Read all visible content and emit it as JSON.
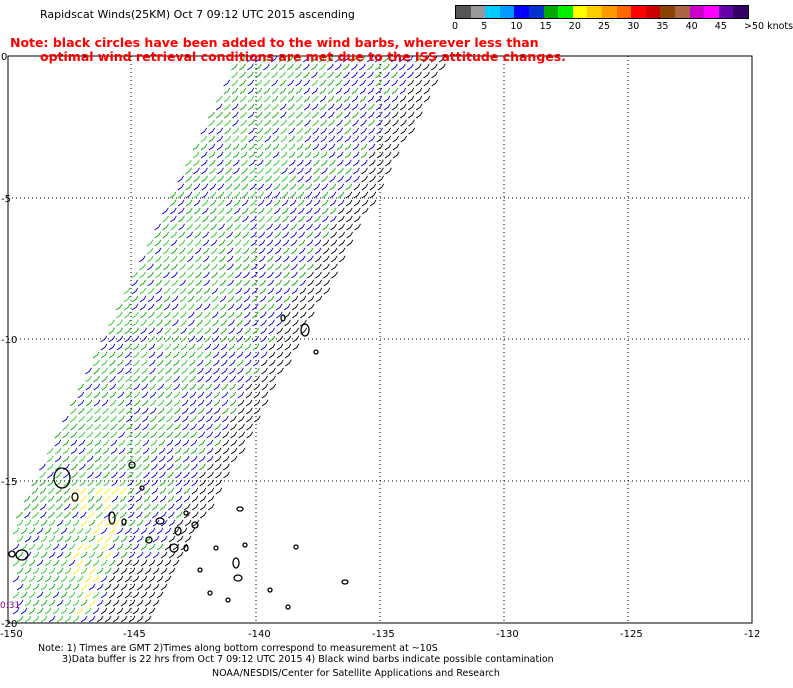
{
  "title": "Rapidscat Winds(25KM) Oct  7 09:12 UTC 2015 ascending",
  "note": {
    "line1": "Note: black circles have been added to the wind barbs, wherever less than",
    "line2": "optimal wind retrieval conditions are met due to the ISS attitude changes."
  },
  "color_scale": {
    "colors": [
      "#555555",
      "#999999",
      "#00ccff",
      "#0099ff",
      "#0000ff",
      "#0033cc",
      "#00aa00",
      "#00ee00",
      "#ffff00",
      "#ffcc00",
      "#ff9900",
      "#ff6600",
      "#ff0000",
      "#cc0000",
      "#884400",
      "#aa6644",
      "#cc00cc",
      "#ff00ff",
      "#6600aa",
      "#330066"
    ],
    "labels": [
      "0",
      "5",
      "10",
      "15",
      "20",
      "25",
      "30",
      "35",
      "40",
      "45",
      ">50 knots"
    ]
  },
  "axes": {
    "lon_labels": [
      "-150",
      "-145",
      "-140",
      "-135",
      "-130",
      "-125",
      "-12"
    ],
    "lat_labels": [
      "0",
      "-5",
      "-10",
      "-15",
      "-20"
    ]
  },
  "swath_time_label": "0:31",
  "footer": {
    "line1": "Note: 1) Times are GMT 2)Times along bottom correspond to measurement at ~10S",
    "line2": "3)Data buffer is 22 hrs from Oct  7 09:12 UTC 2015 4) Black wind barbs indicate possible contamination",
    "line3": "NOAA/NESDIS/Center for Satellite Applications and Research"
  }
}
